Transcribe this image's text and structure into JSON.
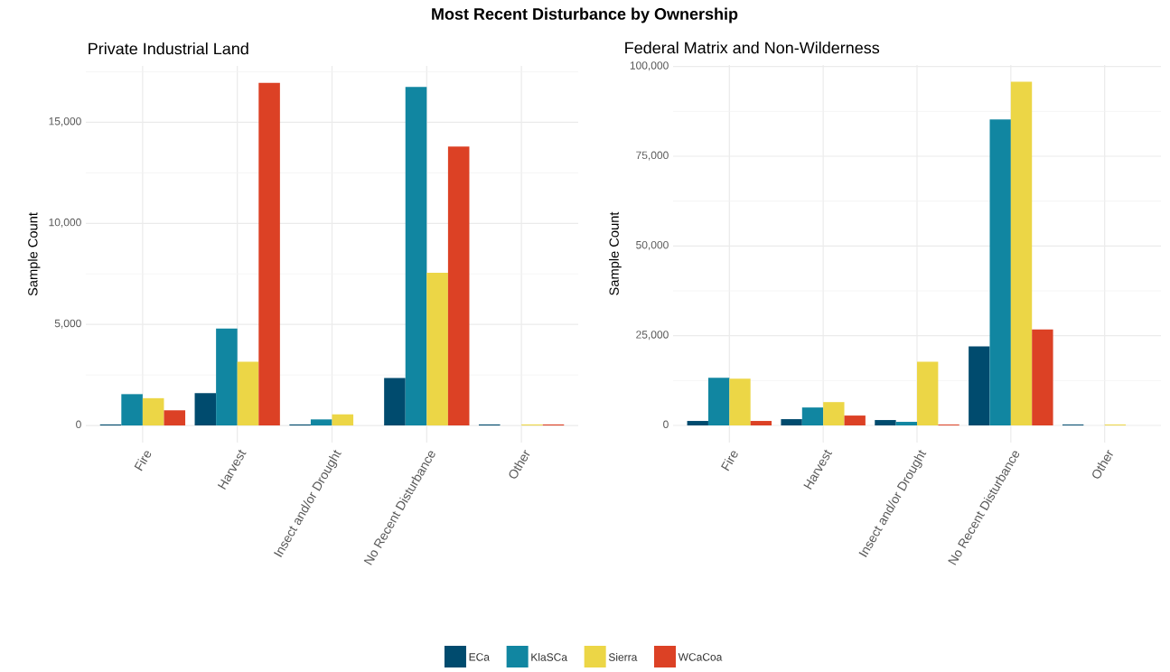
{
  "chart_data": [
    {
      "type": "bar",
      "title": "Most Recent Disturbance by Ownership",
      "subtitle": "Private Industrial Land",
      "ylabel": "Sample Count",
      "categories": [
        "Fire",
        "Harvest",
        "Insect and/or Drought",
        "No Recent Disturbance",
        "Other"
      ],
      "series": [
        {
          "color": "#004b6e",
          "values": [
            50,
            1600,
            50,
            2350,
            50
          ]
        },
        {
          "color": "#1186a1",
          "values": [
            1550,
            4800,
            300,
            16750,
            0
          ]
        },
        {
          "color": "#ecd646",
          "values": [
            1350,
            3150,
            550,
            7550,
            50
          ]
        },
        {
          "color": "#dc4125",
          "values": [
            750,
            16950,
            0,
            13800,
            50
          ]
        }
      ],
      "ylim": [
        -847,
        17790
      ],
      "yticks": [
        {
          "value": 0,
          "label": "0"
        },
        {
          "value": 5000,
          "label": "5,000"
        },
        {
          "value": 10000,
          "label": "10,000"
        },
        {
          "value": 15000,
          "label": "15,000"
        }
      ],
      "grid": true
    },
    {
      "type": "bar",
      "subtitle": "Federal Matrix and Non-Wilderness",
      "ylabel": "Sample Count",
      "categories": [
        "Fire",
        "Harvest",
        "Insect and/or Drought",
        "No Recent Disturbance",
        "Other"
      ],
      "series": [
        {
          "name": "ECa",
          "color": "#004b6e",
          "values": [
            1250,
            1750,
            1500,
            22000,
            250
          ]
        },
        {
          "name": "KlaSCa",
          "color": "#1186a1",
          "values": [
            13250,
            5000,
            1000,
            85250,
            0
          ]
        },
        {
          "name": "Sierra",
          "color": "#ecd646",
          "values": [
            13000,
            6500,
            17750,
            95750,
            250
          ]
        },
        {
          "name": "WCaCoa",
          "color": "#dc4125",
          "values": [
            1250,
            2750,
            250,
            26750,
            0
          ]
        }
      ],
      "ylim": [
        -4782,
        100426
      ],
      "yticks": [
        {
          "value": 0,
          "label": "0"
        },
        {
          "value": 25000,
          "label": "25,000"
        },
        {
          "value": 50000,
          "label": "50,000"
        },
        {
          "value": 75000,
          "label": "75,000"
        },
        {
          "value": 100000,
          "label": "100,000"
        }
      ],
      "grid": true,
      "legend": "bottom"
    }
  ]
}
